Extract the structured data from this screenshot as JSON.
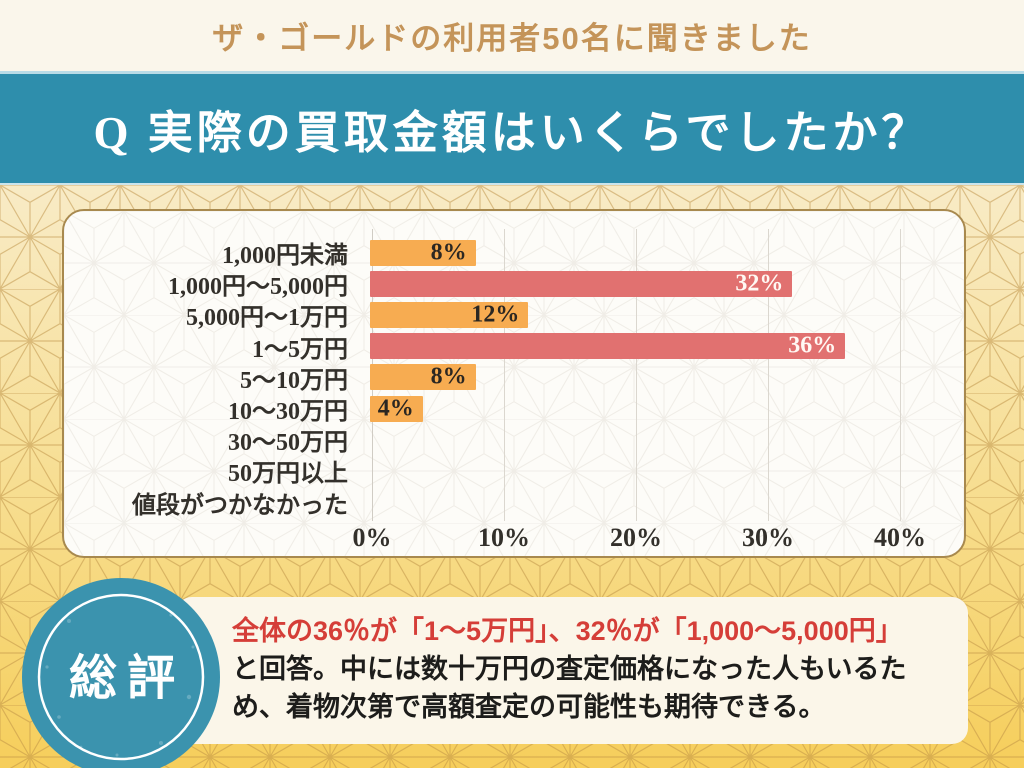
{
  "header": {
    "title": "ザ・ゴールドの利用者50名に聞きました"
  },
  "question_banner": {
    "label": "Q 実際の買取金額はいくらでしたか？"
  },
  "chart_data": {
    "type": "bar",
    "orientation": "horizontal",
    "title": "実際の買取金額はいくらでしたか？",
    "categories": [
      "1,000円未満",
      "1,000円～5,000円",
      "5,000円～1万円",
      "1～5万円",
      "5～10万円",
      "10～30万円",
      "30～50万円",
      "50万円以上",
      "値段がつかなかった"
    ],
    "values": [
      8,
      32,
      12,
      36,
      8,
      4,
      0,
      0,
      0
    ],
    "value_labels": [
      "8%",
      "32%",
      "12%",
      "36%",
      "8%",
      "4%",
      "",
      "",
      ""
    ],
    "bar_colors": [
      "orange",
      "red",
      "orange",
      "red",
      "orange",
      "orange",
      "none",
      "none",
      "none"
    ],
    "value_label_styles": [
      "dark",
      "light",
      "dark",
      "light",
      "dark",
      "dark",
      "",
      "",
      ""
    ],
    "palette": {
      "orange": "#F7AC51",
      "red": "#E17170"
    },
    "x_ticks": [
      0,
      10,
      20,
      30,
      40
    ],
    "x_tick_labels": [
      "0%",
      "10%",
      "20%",
      "30%",
      "40%"
    ],
    "xlim": [
      0,
      40
    ],
    "xlabel": "",
    "ylabel": "",
    "grid": true,
    "legend": false
  },
  "summary": {
    "badge_label": "総評",
    "highlight": "全体の36％が「1～5万円」、32％が「1,000～5,000円」",
    "body": "と回答。中には数十万円の査定価格になった人もいるため、着物次第で高額査定の可能性も期待できる。"
  },
  "colors": {
    "banner_teal": "#2E8EAC",
    "badge_teal": "#3B93AE",
    "header_gold_text": "#C49459",
    "background_gold_top": "#F8EBC6",
    "background_gold_bottom": "#F6CE5B",
    "panel_border_gold": "#A8894E",
    "bar_orange": "#F7AC51",
    "bar_red": "#E17170",
    "highlight_red": "#D53E38"
  }
}
